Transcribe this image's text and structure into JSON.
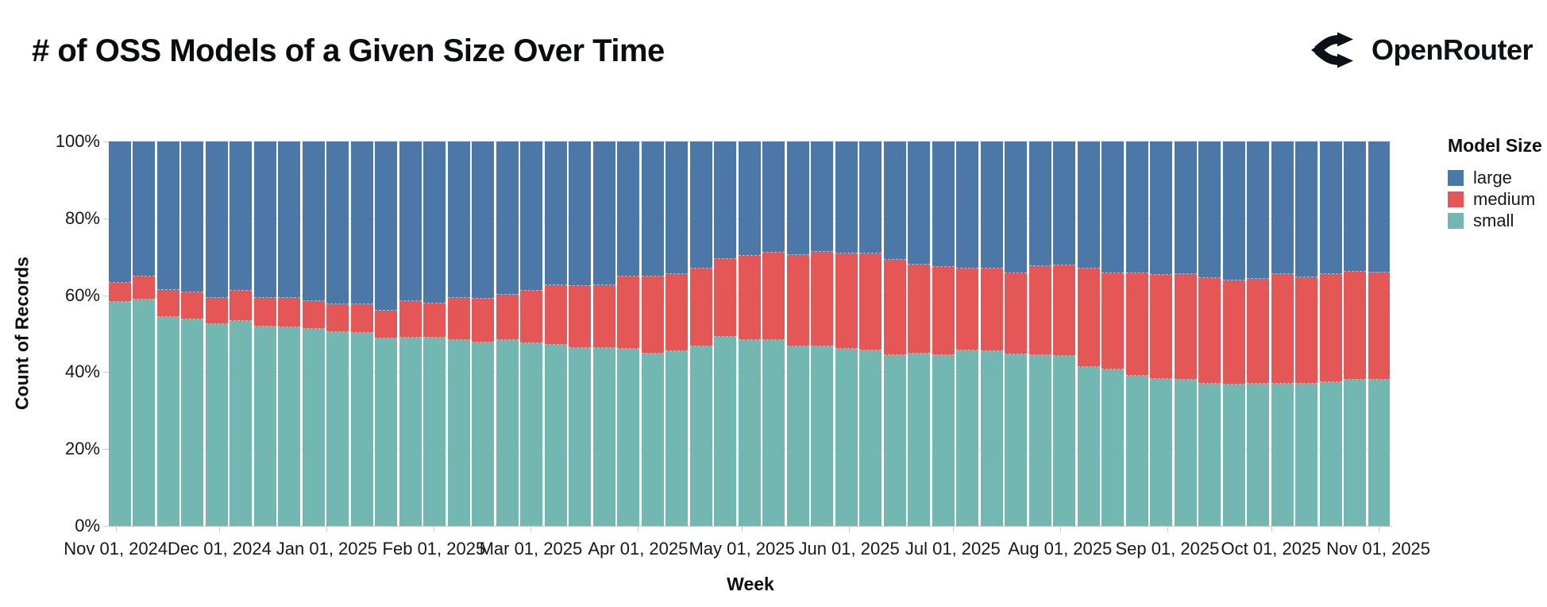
{
  "header": {
    "title": "# of OSS Models of a Given Size Over Time",
    "brand": {
      "name": "OpenRouter"
    }
  },
  "chart_data": {
    "type": "bar",
    "stacked": true,
    "normalized": true,
    "title": "# of OSS Models of a Given Size Over Time",
    "xlabel": "Week",
    "ylabel": "Count of Records",
    "ylim": [
      0,
      100
    ],
    "grid": true,
    "y_tick_labels": [
      "0%",
      "20%",
      "40%",
      "60%",
      "80%",
      "100%"
    ],
    "x_ticks": [
      {
        "date": "2024-11-01",
        "label": "Nov 01, 2024"
      },
      {
        "date": "2024-12-01",
        "label": "Dec 01, 2024"
      },
      {
        "date": "2025-01-01",
        "label": "Jan 01, 2025"
      },
      {
        "date": "2025-02-01",
        "label": "Feb 01, 2025"
      },
      {
        "date": "2025-03-01",
        "label": "Mar 01, 2025"
      },
      {
        "date": "2025-04-01",
        "label": "Apr 01, 2025"
      },
      {
        "date": "2025-05-01",
        "label": "May 01, 2025"
      },
      {
        "date": "2025-06-01",
        "label": "Jun 01, 2025"
      },
      {
        "date": "2025-07-01",
        "label": "Jul 01, 2025"
      },
      {
        "date": "2025-08-01",
        "label": "Aug 01, 2025"
      },
      {
        "date": "2025-09-01",
        "label": "Sep 01, 2025"
      },
      {
        "date": "2025-10-01",
        "label": "Oct 01, 2025"
      },
      {
        "date": "2025-11-01",
        "label": "Nov 01, 2025"
      }
    ],
    "legend": {
      "title": "Model Size",
      "position": "right",
      "entries": [
        {
          "label": "large",
          "color": "#4c78a8"
        },
        {
          "label": "medium",
          "color": "#e45756"
        },
        {
          "label": "small",
          "color": "#72b7b2"
        }
      ]
    },
    "weeks": [
      "2024-10-27",
      "2024-11-03",
      "2024-11-10",
      "2024-11-17",
      "2024-11-24",
      "2024-12-01",
      "2024-12-08",
      "2024-12-15",
      "2024-12-22",
      "2024-12-29",
      "2025-01-05",
      "2025-01-12",
      "2025-01-19",
      "2025-01-26",
      "2025-02-02",
      "2025-02-09",
      "2025-02-16",
      "2025-02-23",
      "2025-03-02",
      "2025-03-09",
      "2025-03-16",
      "2025-03-23",
      "2025-03-30",
      "2025-04-06",
      "2025-04-13",
      "2025-04-20",
      "2025-04-27",
      "2025-05-04",
      "2025-05-11",
      "2025-05-18",
      "2025-05-25",
      "2025-06-01",
      "2025-06-08",
      "2025-06-15",
      "2025-06-22",
      "2025-06-29",
      "2025-07-06",
      "2025-07-13",
      "2025-07-20",
      "2025-07-27",
      "2025-08-03",
      "2025-08-10",
      "2025-08-17",
      "2025-08-24",
      "2025-08-31",
      "2025-09-07",
      "2025-09-14",
      "2025-09-21",
      "2025-09-28",
      "2025-10-05",
      "2025-10-12",
      "2025-10-19",
      "2025-10-26"
    ],
    "series": [
      {
        "name": "small",
        "color": "#72b7b2",
        "values": [
          58.3,
          58.8,
          54.3,
          53.7,
          52.5,
          53.3,
          51.9,
          51.7,
          51.2,
          50.4,
          50.2,
          48.8,
          49.0,
          49.0,
          48.3,
          47.8,
          48.4,
          47.5,
          47.2,
          46.3,
          46.3,
          46.1,
          44.8,
          45.5,
          46.6,
          49.1,
          48.3,
          48.4,
          46.6,
          46.6,
          46.1,
          45.7,
          44.5,
          44.8,
          44.5,
          45.7,
          45.5,
          44.7,
          44.5,
          44.3,
          41.4,
          40.6,
          39.1,
          38.2,
          38.0,
          36.9,
          36.7,
          36.9,
          37.0,
          37.0,
          37.4,
          38.0,
          38.1
        ]
      },
      {
        "name": "medium",
        "color": "#e45756",
        "values": [
          4.9,
          6.1,
          7.1,
          7.0,
          6.8,
          7.9,
          7.5,
          7.7,
          7.2,
          7.2,
          7.5,
          7.2,
          9.4,
          8.8,
          11.1,
          11.2,
          11.7,
          13.7,
          15.5,
          16.2,
          16.4,
          18.8,
          20.0,
          20.0,
          20.4,
          20.3,
          22.0,
          22.6,
          23.9,
          24.7,
          24.8,
          25.1,
          24.7,
          23.2,
          22.9,
          21.2,
          21.4,
          20.9,
          23.1,
          23.4,
          25.6,
          25.0,
          26.7,
          27.1,
          27.4,
          27.6,
          27.1,
          27.4,
          28.5,
          27.7,
          28.1,
          28.2,
          27.9
        ]
      },
      {
        "name": "large",
        "color": "#4c78a8",
        "values": [
          36.8,
          35.1,
          38.6,
          39.3,
          40.7,
          38.8,
          40.6,
          40.6,
          41.6,
          42.4,
          42.3,
          44.0,
          41.6,
          42.2,
          40.6,
          41.0,
          39.9,
          38.8,
          37.3,
          37.5,
          37.3,
          35.1,
          35.2,
          34.5,
          33.0,
          30.6,
          29.7,
          29.0,
          29.5,
          28.7,
          29.1,
          29.2,
          30.8,
          32.0,
          32.6,
          33.1,
          33.1,
          34.4,
          32.4,
          32.3,
          33.0,
          34.4,
          34.2,
          34.7,
          34.6,
          35.5,
          36.2,
          35.7,
          34.5,
          35.3,
          34.5,
          33.8,
          34.0
        ]
      }
    ]
  },
  "layout_colors": {
    "background": "#ffffff",
    "grid": "#dddddd",
    "axis_text": "#16181d",
    "title_text": "#0a0c12"
  }
}
